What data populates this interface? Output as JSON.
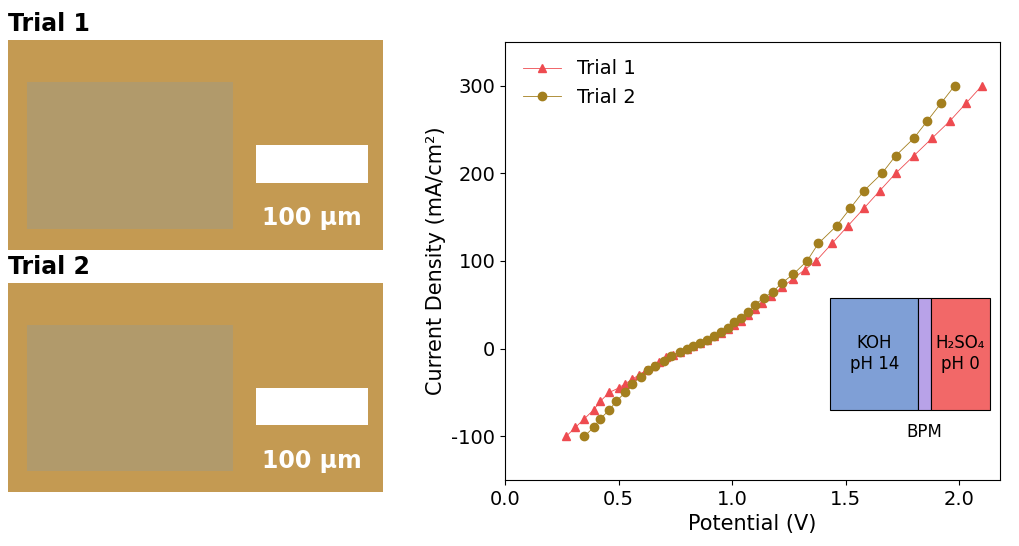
{
  "chart_data": {
    "type": "line",
    "x_label": "Potential (V)",
    "y_label": "Current Density (mA/cm²)",
    "xlim": [
      0.0,
      2.18
    ],
    "ylim": [
      -150,
      350
    ],
    "xticks": [
      {
        "value": 0.0,
        "label": "0.0"
      },
      {
        "value": 0.5,
        "label": "0.5"
      },
      {
        "value": 1.0,
        "label": "1.0"
      },
      {
        "value": 1.5,
        "label": "1.5"
      },
      {
        "value": 2.0,
        "label": "2.0"
      }
    ],
    "yticks": [
      -100,
      0,
      100,
      200,
      300
    ],
    "legend": "upper left",
    "grid": false,
    "series": [
      {
        "name": "Trial 1",
        "color": "#ee4b50",
        "marker": "triangle",
        "line_style": "solid",
        "x": [
          0.27,
          0.31,
          0.35,
          0.39,
          0.42,
          0.46,
          0.5,
          0.53,
          0.56,
          0.59,
          0.62,
          0.65,
          0.68,
          0.71,
          0.74,
          0.77,
          0.8,
          0.83,
          0.86,
          0.89,
          0.92,
          0.95,
          0.98,
          1.01,
          1.04,
          1.07,
          1.1,
          1.13,
          1.17,
          1.22,
          1.27,
          1.32,
          1.37,
          1.44,
          1.51,
          1.58,
          1.65,
          1.72,
          1.8,
          1.88,
          1.96,
          2.03,
          2.1
        ],
        "values": [
          -100,
          -90,
          -80,
          -70,
          -60,
          -50,
          -45,
          -40,
          -35,
          -30,
          -25,
          -20,
          -15,
          -10,
          -7,
          -4,
          0,
          3,
          6,
          10,
          14,
          18,
          22,
          27,
          32,
          38,
          45,
          52,
          60,
          70,
          80,
          90,
          100,
          120,
          140,
          160,
          180,
          200,
          220,
          240,
          260,
          280,
          300
        ]
      },
      {
        "name": "Trial 2",
        "color": "#a37f1e",
        "marker": "circle",
        "line_style": "solid",
        "x": [
          0.35,
          0.39,
          0.42,
          0.46,
          0.49,
          0.53,
          0.56,
          0.6,
          0.63,
          0.66,
          0.7,
          0.73,
          0.77,
          0.8,
          0.83,
          0.86,
          0.89,
          0.92,
          0.95,
          0.98,
          1.01,
          1.04,
          1.07,
          1.1,
          1.14,
          1.18,
          1.22,
          1.27,
          1.33,
          1.38,
          1.46,
          1.52,
          1.58,
          1.66,
          1.72,
          1.8,
          1.86,
          1.92,
          1.98
        ],
        "values": [
          -100,
          -90,
          -80,
          -70,
          -60,
          -50,
          -40,
          -32,
          -25,
          -20,
          -14,
          -8,
          -4,
          0,
          3,
          6,
          10,
          14,
          19,
          24,
          30,
          35,
          42,
          50,
          58,
          65,
          75,
          85,
          100,
          120,
          140,
          160,
          180,
          200,
          220,
          240,
          260,
          280,
          300
        ]
      }
    ],
    "inset": {
      "left": {
        "lines": [
          "KOH",
          "pH 14"
        ],
        "color": "#7f9fd6"
      },
      "membrane": {
        "label": "BPM",
        "color": "#b8a2e8"
      },
      "right": {
        "lines": [
          "H₂SO₄",
          "pH 0"
        ],
        "color": "#f26868"
      }
    }
  },
  "micrographs": [
    {
      "title": "Trial 1",
      "scale_bar": "100 µm"
    },
    {
      "title": "Trial 2",
      "scale_bar": "100 µm"
    }
  ]
}
